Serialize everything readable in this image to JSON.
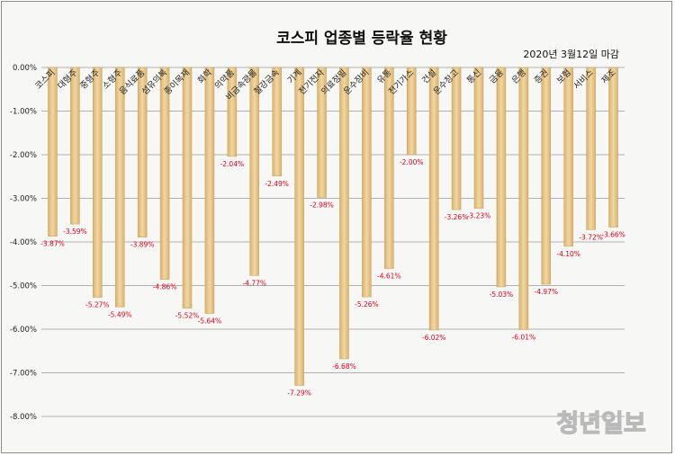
{
  "title": "코스피 업종별 등락율 현황",
  "subtitle": "2020년 3월12일 마감",
  "watermark": "청년일보",
  "chart_data": {
    "type": "bar",
    "categories": [
      "코스피",
      "대형주",
      "중형주",
      "소형주",
      "음식료품",
      "섬유의복",
      "종이목재",
      "화학",
      "의약품",
      "비금속광물",
      "철강금속",
      "기계",
      "전기전자",
      "의료정밀",
      "운수장비",
      "유통",
      "전기가스",
      "건설",
      "운수창고",
      "통신",
      "금융",
      "은행",
      "증권",
      "보험",
      "서비스",
      "제조"
    ],
    "values": [
      -3.87,
      -3.59,
      -5.27,
      -5.49,
      -3.89,
      -4.86,
      -5.52,
      -5.64,
      -2.04,
      -4.77,
      -2.49,
      -7.29,
      -2.98,
      -6.68,
      -5.26,
      -4.61,
      -2.0,
      -6.02,
      -3.26,
      -3.23,
      -5.03,
      -6.01,
      -4.97,
      -4.1,
      -3.72,
      -3.66
    ],
    "data_labels": [
      "-3.87%",
      "-3.59%",
      "-5.27%",
      "-5.49%",
      "-3.89%",
      "-4.86%",
      "-5.52%",
      "-5.64%",
      "-2.04%",
      "-4.77%",
      "-2.49%",
      "-7.29%",
      "-2.98%",
      "-6.68%",
      "-5.26%",
      "-4.61%",
      "-2.00%",
      "-6.02%",
      "-3.26%",
      "-3.23%",
      "-5.03%",
      "-6.01%",
      "-4.97%",
      "-4.10%",
      "-3.72%",
      "-3.66%"
    ],
    "yticks": [
      "0.00%",
      "-1.00%",
      "-2.00%",
      "-3.00%",
      "-4.00%",
      "-5.00%",
      "-6.00%",
      "-7.00%",
      "-8.00%"
    ],
    "ylim": [
      -8,
      0
    ],
    "grid": true,
    "legend": "none",
    "colors": {
      "bar": "#e5c48a",
      "bar_edge": "#c8a058",
      "data_label": "#e0001b",
      "grid": "#b0b0b0"
    }
  }
}
